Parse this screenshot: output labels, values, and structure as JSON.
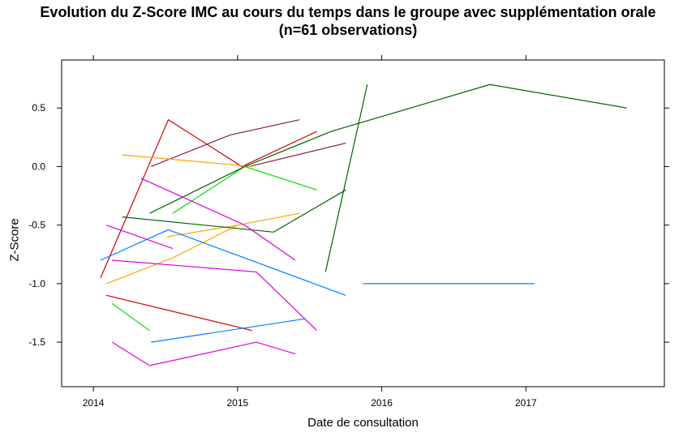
{
  "chart_data": {
    "type": "line",
    "title": "Evolution du Z-Score IMC au cours du temps dans le groupe avec supplémentation orale",
    "subtitle": "(n=61 observations)",
    "xlabel": "Date de consultation",
    "ylabel": "Z-Score",
    "x_ticks": [
      "2014",
      "2015",
      "2016",
      "2017"
    ],
    "y_ticks": [
      "-1.5",
      "-1.0",
      "-0.5",
      "0.0",
      "0.5"
    ],
    "xlim": [
      2013.78,
      2017.96
    ],
    "ylim": [
      -1.88,
      0.91
    ],
    "grid": false,
    "series": [
      {
        "color": "#CC0000",
        "points": [
          [
            2014.05,
            -0.95
          ],
          [
            2014.52,
            0.4
          ],
          [
            2015.03,
            0.0
          ],
          [
            2015.55,
            0.3
          ]
        ]
      },
      {
        "color": "#CC0000",
        "points": [
          [
            2014.09,
            -1.1
          ],
          [
            2015.1,
            -1.4
          ]
        ]
      },
      {
        "color": "#8B1A3A",
        "points": [
          [
            2014.4,
            0.0
          ],
          [
            2014.95,
            0.27
          ],
          [
            2015.43,
            0.4
          ]
        ]
      },
      {
        "color": "#8B1A3A",
        "points": [
          [
            2015.08,
            0.0
          ],
          [
            2015.75,
            0.2
          ]
        ]
      },
      {
        "color": "#FFA500",
        "points": [
          [
            2014.2,
            0.1
          ],
          [
            2015.1,
            0.0
          ]
        ]
      },
      {
        "color": "#FFA500",
        "points": [
          [
            2014.09,
            -1.0
          ],
          [
            2014.55,
            -0.78
          ],
          [
            2015.0,
            -0.5
          ],
          [
            2015.43,
            -0.4
          ]
        ]
      },
      {
        "color": "#FFA500",
        "points": [
          [
            2014.51,
            -0.6
          ],
          [
            2015.0,
            -0.5
          ]
        ]
      },
      {
        "color": "#00DD00",
        "points": [
          [
            2014.55,
            -0.4
          ],
          [
            2015.05,
            0.0
          ],
          [
            2015.55,
            -0.2
          ]
        ]
      },
      {
        "color": "#00DD00",
        "points": [
          [
            2014.13,
            -1.17
          ],
          [
            2014.39,
            -1.4
          ]
        ]
      },
      {
        "color": "#006400",
        "points": [
          [
            2014.39,
            -0.4
          ],
          [
            2015.05,
            0.0
          ],
          [
            2015.65,
            0.3
          ],
          [
            2016.75,
            0.7
          ],
          [
            2017.7,
            0.5
          ]
        ]
      },
      {
        "color": "#006400",
        "points": [
          [
            2014.2,
            -0.43
          ],
          [
            2015.25,
            -0.56
          ],
          [
            2015.75,
            -0.2
          ]
        ]
      },
      {
        "color": "#006400",
        "points": [
          [
            2015.61,
            -0.9
          ],
          [
            2015.9,
            0.7
          ]
        ]
      },
      {
        "color": "#DD00DD",
        "points": [
          [
            2014.33,
            -0.1
          ],
          [
            2015.05,
            -0.5
          ],
          [
            2015.4,
            -0.8
          ]
        ]
      },
      {
        "color": "#DD00DD",
        "points": [
          [
            2014.09,
            -0.5
          ],
          [
            2014.55,
            -0.7
          ]
        ]
      },
      {
        "color": "#DD00DD",
        "points": [
          [
            2014.13,
            -0.8
          ],
          [
            2015.13,
            -0.9
          ],
          [
            2015.55,
            -1.4
          ]
        ]
      },
      {
        "color": "#DD00DD",
        "points": [
          [
            2014.13,
            -1.5
          ],
          [
            2014.39,
            -1.7
          ],
          [
            2015.13,
            -1.5
          ],
          [
            2015.4,
            -1.6
          ]
        ]
      },
      {
        "color": "#0080FF",
        "points": [
          [
            2014.05,
            -0.8
          ],
          [
            2014.52,
            -0.54
          ],
          [
            2015.75,
            -1.1
          ]
        ]
      },
      {
        "color": "#0080FF",
        "points": [
          [
            2014.4,
            -1.5
          ],
          [
            2015.47,
            -1.3
          ]
        ]
      },
      {
        "color": "#0080FF",
        "points": [
          [
            2015.87,
            -1.0
          ],
          [
            2017.06,
            -1.0
          ]
        ]
      }
    ]
  }
}
